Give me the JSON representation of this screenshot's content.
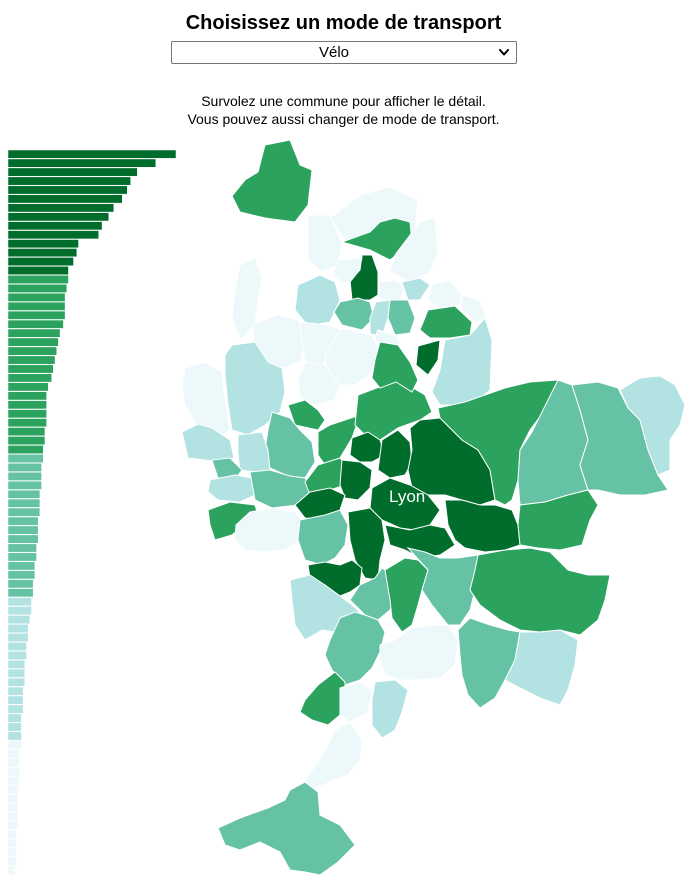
{
  "header": {
    "title": "Choisissez un mode de transport",
    "select": {
      "value": "Vélo",
      "options": [
        "Vélo"
      ]
    },
    "instructions": [
      "Survolez une commune pour afficher le détail.",
      "Vous pouvez aussi changer de mode de transport."
    ]
  },
  "map": {
    "city_label": "Lyon",
    "palette": [
      "#edf8fb",
      "#b2e2e2",
      "#66c2a4",
      "#2ca25f",
      "#006d2c"
    ]
  },
  "chart_data": {
    "type": "bar",
    "orientation": "horizontal",
    "sorted": "descending",
    "values": [
      1.0,
      0.88,
      0.77,
      0.73,
      0.71,
      0.68,
      0.63,
      0.6,
      0.56,
      0.54,
      0.42,
      0.41,
      0.39,
      0.36,
      0.36,
      0.35,
      0.34,
      0.34,
      0.34,
      0.33,
      0.31,
      0.3,
      0.29,
      0.28,
      0.27,
      0.26,
      0.24,
      0.23,
      0.23,
      0.23,
      0.23,
      0.22,
      0.22,
      0.21,
      0.21,
      0.2,
      0.2,
      0.2,
      0.19,
      0.19,
      0.19,
      0.18,
      0.18,
      0.18,
      0.17,
      0.17,
      0.16,
      0.16,
      0.15,
      0.15,
      0.14,
      0.14,
      0.13,
      0.12,
      0.12,
      0.11,
      0.11,
      0.1,
      0.1,
      0.1,
      0.09,
      0.09,
      0.09,
      0.08,
      0.08,
      0.08,
      0.08,
      0.07,
      0.07,
      0.07,
      0.07,
      0.06,
      0.06,
      0.06,
      0.06,
      0.06,
      0.05,
      0.05,
      0.05,
      0.05,
      0.04
    ],
    "class_breaks": [
      14,
      34,
      50,
      66
    ],
    "xlabel": "",
    "ylabel": ""
  }
}
